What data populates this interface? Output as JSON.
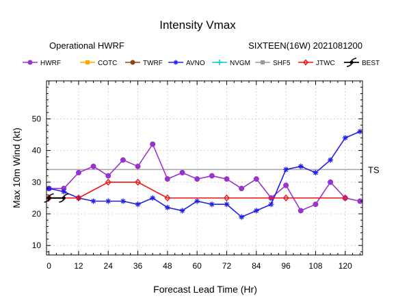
{
  "title": "Intensity Vmax",
  "subtitle_left": "Operational HWRF",
  "subtitle_right": "SIXTEEN(16W) 2021081200",
  "chart_data": {
    "type": "line",
    "xlabel": "Forecast Lead Time (Hr)",
    "ylabel": "Max 10m Wind (kt)",
    "xlim": [
      -1,
      127
    ],
    "ylim": [
      7,
      62
    ],
    "xticks": [
      0,
      12,
      24,
      36,
      48,
      60,
      72,
      84,
      96,
      108,
      120
    ],
    "yticks": [
      10,
      20,
      30,
      40,
      50
    ],
    "grid": true,
    "legend_position": "top",
    "reference_line": {
      "value": 34,
      "label": "TS",
      "color": "#aaaaaa"
    },
    "series": [
      {
        "name": "HWRF",
        "color": "#9933cc",
        "marker": "circle",
        "x": [
          0,
          6,
          12,
          18,
          24,
          30,
          36,
          42,
          48,
          54,
          60,
          66,
          72,
          78,
          84,
          90,
          96,
          102,
          108,
          114,
          120,
          126
        ],
        "y": [
          28,
          28,
          33,
          35,
          32,
          37,
          35,
          42,
          31,
          33,
          31,
          32,
          31,
          28,
          31,
          25,
          29,
          21,
          23,
          30,
          25,
          24
        ]
      },
      {
        "name": "COTC",
        "color": "#ffa500",
        "marker": "square",
        "x": [],
        "y": []
      },
      {
        "name": "TWRF",
        "color": "#8b4513",
        "marker": "circle",
        "x": [],
        "y": []
      },
      {
        "name": "AVNO",
        "color": "#1f1fe6",
        "marker": "star",
        "x": [
          0,
          6,
          12,
          18,
          24,
          30,
          36,
          42,
          48,
          54,
          60,
          66,
          72,
          78,
          84,
          90,
          96,
          102,
          108,
          114,
          120,
          126
        ],
        "y": [
          28,
          27,
          25,
          24,
          24,
          24,
          23,
          25,
          22,
          21,
          24,
          23,
          23,
          19,
          21,
          23,
          34,
          35,
          33,
          37,
          44,
          46
        ]
      },
      {
        "name": "NVGM",
        "color": "#00cccc",
        "marker": "plus",
        "x": [],
        "y": []
      },
      {
        "name": "SHF5",
        "color": "#999999",
        "marker": "square",
        "x": [],
        "y": []
      },
      {
        "name": "JTWC",
        "color": "#ee1111",
        "marker": "diamond",
        "x": [
          0,
          12,
          24,
          36,
          48,
          72,
          96,
          120
        ],
        "y": [
          25,
          25,
          30,
          30,
          25,
          25,
          25,
          25
        ]
      },
      {
        "name": "BEST",
        "color": "#000000",
        "marker": "hurricane",
        "x": [
          0,
          6
        ],
        "y": [
          25,
          25
        ]
      }
    ]
  }
}
